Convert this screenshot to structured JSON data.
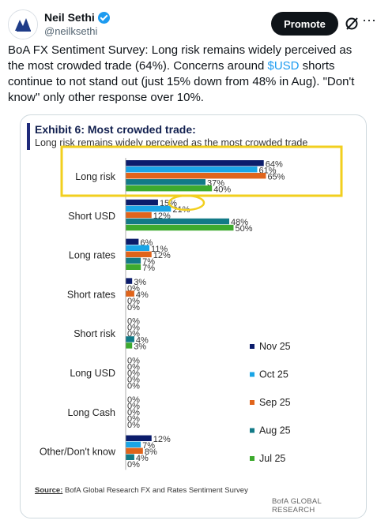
{
  "tweet": {
    "author_name": "Neil Sethi",
    "author_handle": "@neilksethi",
    "promote_label": "Promote",
    "more_label": "···",
    "text_part1": "BoA FX Sentiment Survey: Long risk remains widely perceived as the most crowded trade (64%). Concerns around ",
    "cashtag": "$USD",
    "text_part2": " shorts continue to not stand out (just 15% down from 48% in Aug). \"Don't know\" only other response over 10%."
  },
  "exhibit": {
    "title": "Exhibit 6: Most crowded trade:",
    "subtitle": "Long risk remains widely perceived as the most crowded trade",
    "source_label": "Source:",
    "source_text": " BofA Global Research FX and Rates Sentiment Survey",
    "brand": "BofA GLOBAL RESEARCH"
  },
  "colors": {
    "nov25": "#0b1c6b",
    "oct25": "#1aa5e6",
    "sep25": "#e0641b",
    "aug25": "#127a87",
    "jul25": "#3daa2e",
    "highlight": "#f2cf1e"
  },
  "chart_data": {
    "type": "bar",
    "orientation": "horizontal",
    "title": "Exhibit 6: Most crowded trade:",
    "subtitle": "Long risk remains widely perceived as the most crowded trade",
    "categories": [
      "Long risk",
      "Short USD",
      "Long rates",
      "Short rates",
      "Short risk",
      "Long USD",
      "Long Cash",
      "Other/Don't know"
    ],
    "series": [
      {
        "name": "Nov 25",
        "color": "#0b1c6b",
        "values": [
          64,
          15,
          6,
          3,
          0,
          0,
          0,
          12
        ]
      },
      {
        "name": "Oct 25",
        "color": "#1aa5e6",
        "values": [
          61,
          21,
          11,
          0,
          0,
          0,
          0,
          7
        ]
      },
      {
        "name": "Sep 25",
        "color": "#e0641b",
        "values": [
          65,
          12,
          12,
          4,
          0,
          0,
          0,
          8
        ]
      },
      {
        "name": "Aug 25",
        "color": "#127a87",
        "values": [
          37,
          48,
          7,
          0,
          4,
          0,
          0,
          4
        ]
      },
      {
        "name": "Jul 25",
        "color": "#3daa2e",
        "values": [
          40,
          50,
          7,
          0,
          3,
          0,
          0,
          0
        ]
      }
    ],
    "value_suffix": "%",
    "legend_placement": "right",
    "grid": false,
    "highlights": [
      "Long risk",
      "Short USD Nov 25"
    ]
  }
}
